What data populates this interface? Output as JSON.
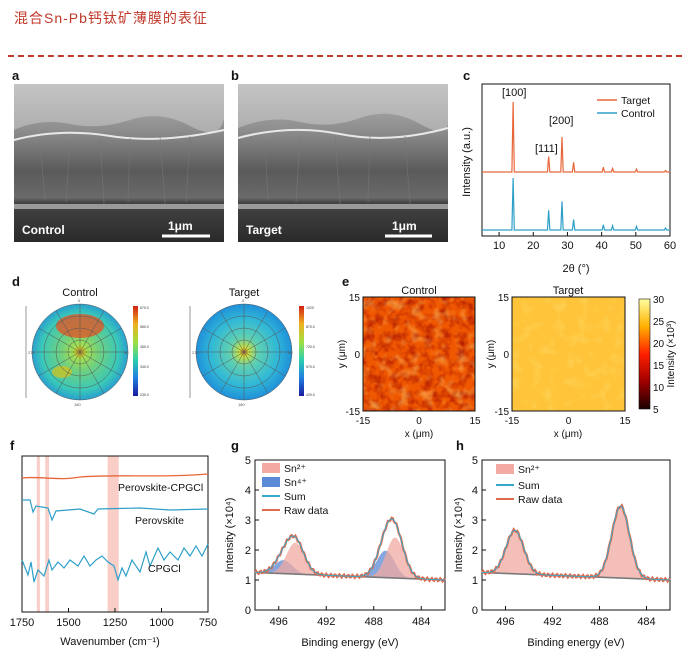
{
  "page_title": "混合Sn-Pb钙钛矿薄膜的表征",
  "colors": {
    "accent": "#c0392b",
    "target": "#e8673a",
    "control": "#2e9fc8",
    "raw": "#e06a4e",
    "sum": "#3aa8c8",
    "sn2": "#f2aaa2",
    "sn4": "#5b8ad6",
    "bg": "#7a7a7a"
  },
  "panel_labels": {
    "a": "a",
    "b": "b",
    "c": "c",
    "d": "d",
    "e": "e",
    "f": "f",
    "g": "g",
    "h": "h"
  },
  "sem": {
    "a": {
      "label": "Control",
      "scale": "1μm"
    },
    "b": {
      "label": "Target",
      "scale": "1μm"
    }
  },
  "pole": {
    "control_title": "Control",
    "target_title": "Target"
  },
  "map": {
    "control_title": "Control",
    "target_title": "Target",
    "x_label": "x (μm)",
    "y_label": "y (μm)",
    "cbar_label": "Intensity (×10³)",
    "cbar_ticks": [
      "30",
      "25",
      "20",
      "15",
      "10",
      "5"
    ]
  },
  "chart_data": [
    {
      "id": "c",
      "type": "line",
      "xlabel": "2θ (°)",
      "ylabel": "Intensity (a.u.)",
      "xlim": [
        5,
        60
      ],
      "x_ticks": [
        "10",
        "20",
        "30",
        "40",
        "50",
        "60"
      ],
      "series": [
        {
          "name": "Target",
          "peaks": [
            [
              14.1,
              1.0
            ],
            [
              24.5,
              0.22
            ],
            [
              28.4,
              0.5
            ],
            [
              31.8,
              0.14
            ],
            [
              40.5,
              0.07
            ],
            [
              43.2,
              0.05
            ],
            [
              50.2,
              0.04
            ],
            [
              58.7,
              0.02
            ]
          ]
        },
        {
          "name": "Control",
          "peaks": [
            [
              14.1,
              1.0
            ],
            [
              24.5,
              0.38
            ],
            [
              28.4,
              0.55
            ],
            [
              31.8,
              0.2
            ],
            [
              40.5,
              0.1
            ],
            [
              43.2,
              0.08
            ],
            [
              50.2,
              0.07
            ],
            [
              58.7,
              0.04
            ]
          ]
        }
      ],
      "annotations": [
        "[100]",
        "[111]",
        "[200]"
      ]
    },
    {
      "id": "f",
      "type": "line",
      "xlabel": "Wavenumber (cm⁻¹)",
      "xlim": [
        1750,
        750
      ],
      "x_ticks": [
        "1750",
        "1500",
        "1250",
        "1000",
        "750"
      ],
      "highlight_bands": [
        [
          1670,
          1655
        ],
        [
          1625,
          1605
        ],
        [
          1290,
          1230
        ]
      ],
      "series": [
        {
          "name": "Perovskite-CPGCl"
        },
        {
          "name": "Perovskite"
        },
        {
          "name": "CPGCl"
        }
      ]
    },
    {
      "id": "g",
      "type": "area",
      "xlabel": "Binding energy (eV)",
      "ylabel": "Intensity (×10⁴)",
      "xlim": [
        498,
        482
      ],
      "ylim": [
        0,
        5
      ],
      "x_ticks": [
        "496",
        "492",
        "488",
        "484"
      ],
      "y_ticks": [
        "0",
        "1",
        "2",
        "3",
        "4",
        "5"
      ],
      "legend": [
        "Sn²⁺",
        "Sn⁴⁺",
        "Sum",
        "Raw data"
      ],
      "peaks": {
        "sn2": [
          [
            494.6,
            1.05
          ],
          [
            486.2,
            1.35
          ]
        ],
        "sn4": [
          [
            495.6,
            0.45
          ],
          [
            487.0,
            0.9
          ]
        ],
        "baseline": [
          1.25,
          1.0
        ]
      }
    },
    {
      "id": "h",
      "type": "area",
      "xlabel": "Binding energy (eV)",
      "ylabel": "Intensity (×10⁴)",
      "xlim": [
        498,
        482
      ],
      "ylim": [
        0,
        5
      ],
      "x_ticks": [
        "496",
        "492",
        "488",
        "484"
      ],
      "y_ticks": [
        "0",
        "1",
        "2",
        "3",
        "4",
        "5"
      ],
      "legend": [
        "Sn²⁺",
        "Sum",
        "Raw data"
      ],
      "peaks": {
        "sn2": [
          [
            495.2,
            1.45
          ],
          [
            486.2,
            2.4
          ]
        ],
        "baseline": [
          1.25,
          1.0
        ]
      }
    }
  ]
}
